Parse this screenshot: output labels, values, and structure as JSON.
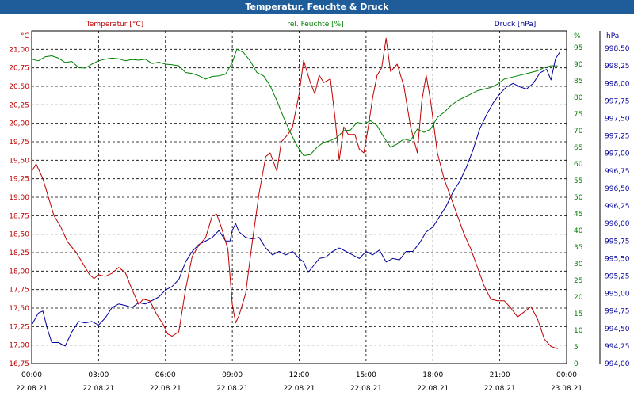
{
  "title": "Temperatur, Feuchte & Druck",
  "colors": {
    "temperature": "#c00000",
    "humidity": "#008000",
    "pressure": "#000099",
    "grid": "#000000",
    "axis_text": "#000000"
  },
  "chart_data": {
    "type": "line",
    "title": "Temperatur, Feuchte & Druck",
    "x_ticks": [
      {
        "hour": 0,
        "time": "00:00",
        "date": "22.08.21"
      },
      {
        "hour": 3,
        "time": "03:00",
        "date": "22.08.21"
      },
      {
        "hour": 6,
        "time": "06:00",
        "date": "22.08.21"
      },
      {
        "hour": 9,
        "time": "09:00",
        "date": "22.08.21"
      },
      {
        "hour": 12,
        "time": "12:00",
        "date": "22.08.21"
      },
      {
        "hour": 15,
        "time": "15:00",
        "date": "22.08.21"
      },
      {
        "hour": 18,
        "time": "18:00",
        "date": "22.08.21"
      },
      {
        "hour": 21,
        "time": "21:00",
        "date": "22.08.21"
      },
      {
        "hour": 24,
        "time": "00:00",
        "date": "23.08.21"
      }
    ],
    "xlim": [
      0,
      24
    ],
    "temperature": {
      "name": "Temperatur [°C]",
      "unit": "°C",
      "ylim": [
        16.75,
        21.25
      ],
      "ticks": [
        "16,75",
        "17,00",
        "17,25",
        "17,50",
        "17,75",
        "18,00",
        "18,25",
        "18,50",
        "18,75",
        "19,00",
        "19,25",
        "19,50",
        "19,75",
        "20,00",
        "20,25",
        "20,50",
        "20,75",
        "21,00"
      ],
      "points": [
        [
          0,
          19.35
        ],
        [
          0.2,
          19.45
        ],
        [
          0.5,
          19.25
        ],
        [
          0.8,
          18.95
        ],
        [
          1.0,
          18.75
        ],
        [
          1.3,
          18.6
        ],
        [
          1.6,
          18.4
        ],
        [
          2.0,
          18.25
        ],
        [
          2.3,
          18.1
        ],
        [
          2.6,
          17.95
        ],
        [
          2.8,
          17.9
        ],
        [
          3.0,
          17.95
        ],
        [
          3.3,
          17.93
        ],
        [
          3.6,
          17.97
        ],
        [
          3.9,
          18.05
        ],
        [
          4.2,
          17.98
        ],
        [
          4.5,
          17.75
        ],
        [
          4.8,
          17.55
        ],
        [
          5.0,
          17.62
        ],
        [
          5.3,
          17.6
        ],
        [
          5.6,
          17.42
        ],
        [
          5.9,
          17.28
        ],
        [
          6.1,
          17.15
        ],
        [
          6.3,
          17.12
        ],
        [
          6.6,
          17.18
        ],
        [
          6.9,
          17.75
        ],
        [
          7.2,
          18.2
        ],
        [
          7.5,
          18.35
        ],
        [
          7.8,
          18.45
        ],
        [
          8.1,
          18.75
        ],
        [
          8.3,
          18.77
        ],
        [
          8.5,
          18.6
        ],
        [
          8.8,
          18.3
        ],
        [
          9.0,
          17.55
        ],
        [
          9.15,
          17.3
        ],
        [
          9.3,
          17.4
        ],
        [
          9.6,
          17.7
        ],
        [
          9.9,
          18.4
        ],
        [
          10.2,
          19.05
        ],
        [
          10.5,
          19.55
        ],
        [
          10.7,
          19.6
        ],
        [
          11.0,
          19.35
        ],
        [
          11.2,
          19.75
        ],
        [
          11.5,
          19.85
        ],
        [
          11.7,
          19.95
        ],
        [
          12.0,
          20.4
        ],
        [
          12.2,
          20.85
        ],
        [
          12.5,
          20.55
        ],
        [
          12.7,
          20.4
        ],
        [
          12.9,
          20.65
        ],
        [
          13.1,
          20.55
        ],
        [
          13.4,
          20.6
        ],
        [
          13.6,
          20.1
        ],
        [
          13.8,
          19.5
        ],
        [
          14.0,
          19.95
        ],
        [
          14.2,
          19.85
        ],
        [
          14.5,
          19.85
        ],
        [
          14.7,
          19.65
        ],
        [
          14.9,
          19.6
        ],
        [
          15.1,
          19.95
        ],
        [
          15.3,
          20.35
        ],
        [
          15.5,
          20.65
        ],
        [
          15.7,
          20.75
        ],
        [
          15.9,
          21.15
        ],
        [
          16.1,
          20.7
        ],
        [
          16.4,
          20.8
        ],
        [
          16.7,
          20.5
        ],
        [
          17.0,
          19.95
        ],
        [
          17.3,
          19.6
        ],
        [
          17.5,
          20.3
        ],
        [
          17.7,
          20.65
        ],
        [
          17.9,
          20.3
        ],
        [
          18.2,
          19.6
        ],
        [
          18.5,
          19.25
        ],
        [
          18.8,
          19.0
        ],
        [
          19.1,
          18.75
        ],
        [
          19.4,
          18.5
        ],
        [
          19.7,
          18.3
        ],
        [
          20.0,
          18.05
        ],
        [
          20.3,
          17.8
        ],
        [
          20.6,
          17.62
        ],
        [
          20.9,
          17.6
        ],
        [
          21.2,
          17.6
        ],
        [
          21.5,
          17.5
        ],
        [
          21.8,
          17.38
        ],
        [
          22.1,
          17.45
        ],
        [
          22.4,
          17.52
        ],
        [
          22.7,
          17.35
        ],
        [
          23.0,
          17.08
        ],
        [
          23.3,
          16.98
        ],
        [
          23.6,
          16.95
        ]
      ]
    },
    "humidity": {
      "name": "rel. Feuchte [%]",
      "unit": "%",
      "ylim": [
        0,
        100
      ],
      "ticks": [
        "0",
        "5",
        "10",
        "15",
        "20",
        "25",
        "30",
        "35",
        "40",
        "45",
        "50",
        "55",
        "60",
        "65",
        "70",
        "75",
        "80",
        "85",
        "90",
        "95"
      ],
      "points": [
        [
          0,
          91.5
        ],
        [
          0.3,
          91
        ],
        [
          0.6,
          92.2
        ],
        [
          0.9,
          92.5
        ],
        [
          1.2,
          91.8
        ],
        [
          1.5,
          90.5
        ],
        [
          1.8,
          90.8
        ],
        [
          2.1,
          89
        ],
        [
          2.4,
          88.8
        ],
        [
          2.7,
          90
        ],
        [
          3.0,
          91
        ],
        [
          3.3,
          91.5
        ],
        [
          3.6,
          91.8
        ],
        [
          3.9,
          91.6
        ],
        [
          4.2,
          91
        ],
        [
          4.5,
          91.4
        ],
        [
          4.8,
          91.2
        ],
        [
          5.1,
          91.5
        ],
        [
          5.4,
          90.2
        ],
        [
          5.7,
          90.6
        ],
        [
          6.0,
          90
        ],
        [
          6.3,
          89.8
        ],
        [
          6.6,
          89.5
        ],
        [
          6.9,
          87.5
        ],
        [
          7.2,
          87.2
        ],
        [
          7.5,
          86.5
        ],
        [
          7.8,
          85.5
        ],
        [
          8.1,
          86.3
        ],
        [
          8.4,
          86.5
        ],
        [
          8.7,
          87
        ],
        [
          9.0,
          90.5
        ],
        [
          9.2,
          94.5
        ],
        [
          9.5,
          93.5
        ],
        [
          9.8,
          91
        ],
        [
          10.1,
          87.5
        ],
        [
          10.4,
          86.5
        ],
        [
          10.7,
          83.5
        ],
        [
          11.0,
          79
        ],
        [
          11.3,
          74
        ],
        [
          11.6,
          69.5
        ],
        [
          11.9,
          65.5
        ],
        [
          12.2,
          62.5
        ],
        [
          12.5,
          62.8
        ],
        [
          12.8,
          65
        ],
        [
          13.1,
          66.5
        ],
        [
          13.4,
          67
        ],
        [
          13.7,
          68
        ],
        [
          14.0,
          70
        ],
        [
          14.3,
          70.2
        ],
        [
          14.6,
          72.5
        ],
        [
          14.9,
          72
        ],
        [
          15.2,
          73
        ],
        [
          15.5,
          71.5
        ],
        [
          15.8,
          68
        ],
        [
          16.1,
          65
        ],
        [
          16.4,
          66
        ],
        [
          16.7,
          67.5
        ],
        [
          17.0,
          67
        ],
        [
          17.3,
          70.5
        ],
        [
          17.6,
          69.5
        ],
        [
          17.9,
          70.5
        ],
        [
          18.2,
          74
        ],
        [
          18.5,
          75.5
        ],
        [
          18.8,
          77.5
        ],
        [
          19.1,
          79
        ],
        [
          19.4,
          80
        ],
        [
          19.7,
          81
        ],
        [
          20.0,
          82
        ],
        [
          20.3,
          82.5
        ],
        [
          20.6,
          83
        ],
        [
          20.9,
          84
        ],
        [
          21.2,
          85.5
        ],
        [
          21.5,
          86
        ],
        [
          21.8,
          86.5
        ],
        [
          22.1,
          87
        ],
        [
          22.4,
          87.5
        ],
        [
          22.7,
          88
        ],
        [
          23.0,
          89
        ],
        [
          23.3,
          89.5
        ],
        [
          23.6,
          89.5
        ]
      ]
    },
    "pressure": {
      "name": "Druck [hPa]",
      "unit": "hPa",
      "ylim": [
        994.0,
        998.75
      ],
      "ticks": [
        "994,00",
        "994,25",
        "994,50",
        "994,75",
        "995,00",
        "995,25",
        "995,50",
        "995,75",
        "996,00",
        "996,25",
        "996,50",
        "996,75",
        "997,00",
        "997,25",
        "997,50",
        "997,75",
        "998,00",
        "998,25",
        "998,50"
      ],
      "points": [
        [
          0,
          994.55
        ],
        [
          0.3,
          994.72
        ],
        [
          0.5,
          994.75
        ],
        [
          0.7,
          994.5
        ],
        [
          0.9,
          994.3
        ],
        [
          1.2,
          994.3
        ],
        [
          1.5,
          994.25
        ],
        [
          1.8,
          994.45
        ],
        [
          2.1,
          994.6
        ],
        [
          2.4,
          994.58
        ],
        [
          2.7,
          994.6
        ],
        [
          3.0,
          994.55
        ],
        [
          3.3,
          994.65
        ],
        [
          3.6,
          994.8
        ],
        [
          3.9,
          994.85
        ],
        [
          4.2,
          994.83
        ],
        [
          4.5,
          994.8
        ],
        [
          4.8,
          994.87
        ],
        [
          5.1,
          994.85
        ],
        [
          5.4,
          994.9
        ],
        [
          5.7,
          994.95
        ],
        [
          6.0,
          995.05
        ],
        [
          6.3,
          995.1
        ],
        [
          6.6,
          995.2
        ],
        [
          6.9,
          995.45
        ],
        [
          7.2,
          995.6
        ],
        [
          7.5,
          995.7
        ],
        [
          7.8,
          995.75
        ],
        [
          8.1,
          995.8
        ],
        [
          8.4,
          995.9
        ],
        [
          8.7,
          995.75
        ],
        [
          8.9,
          995.75
        ],
        [
          9.0,
          995.9
        ],
        [
          9.15,
          996.0
        ],
        [
          9.3,
          995.88
        ],
        [
          9.6,
          995.8
        ],
        [
          9.9,
          995.78
        ],
        [
          10.2,
          995.8
        ],
        [
          10.5,
          995.65
        ],
        [
          10.8,
          995.55
        ],
        [
          11.1,
          995.6
        ],
        [
          11.4,
          995.55
        ],
        [
          11.7,
          995.6
        ],
        [
          12.0,
          995.5
        ],
        [
          12.2,
          995.45
        ],
        [
          12.4,
          995.3
        ],
        [
          12.6,
          995.38
        ],
        [
          12.9,
          995.5
        ],
        [
          13.2,
          995.52
        ],
        [
          13.5,
          995.6
        ],
        [
          13.8,
          995.65
        ],
        [
          14.1,
          995.6
        ],
        [
          14.4,
          995.55
        ],
        [
          14.7,
          995.5
        ],
        [
          15.0,
          995.6
        ],
        [
          15.3,
          995.55
        ],
        [
          15.6,
          995.62
        ],
        [
          15.9,
          995.45
        ],
        [
          16.2,
          995.5
        ],
        [
          16.5,
          995.48
        ],
        [
          16.8,
          995.6
        ],
        [
          17.1,
          995.6
        ],
        [
          17.4,
          995.72
        ],
        [
          17.7,
          995.88
        ],
        [
          18.0,
          995.95
        ],
        [
          18.3,
          996.1
        ],
        [
          18.6,
          996.25
        ],
        [
          18.9,
          996.45
        ],
        [
          19.2,
          996.6
        ],
        [
          19.5,
          996.8
        ],
        [
          19.8,
          997.05
        ],
        [
          20.1,
          997.35
        ],
        [
          20.4,
          997.55
        ],
        [
          20.7,
          997.72
        ],
        [
          21.0,
          997.85
        ],
        [
          21.3,
          997.95
        ],
        [
          21.6,
          998.0
        ],
        [
          21.9,
          997.95
        ],
        [
          22.2,
          997.92
        ],
        [
          22.5,
          998.0
        ],
        [
          22.8,
          998.15
        ],
        [
          23.1,
          998.2
        ],
        [
          23.3,
          998.05
        ],
        [
          23.5,
          998.35
        ],
        [
          23.7,
          998.45
        ]
      ]
    }
  }
}
